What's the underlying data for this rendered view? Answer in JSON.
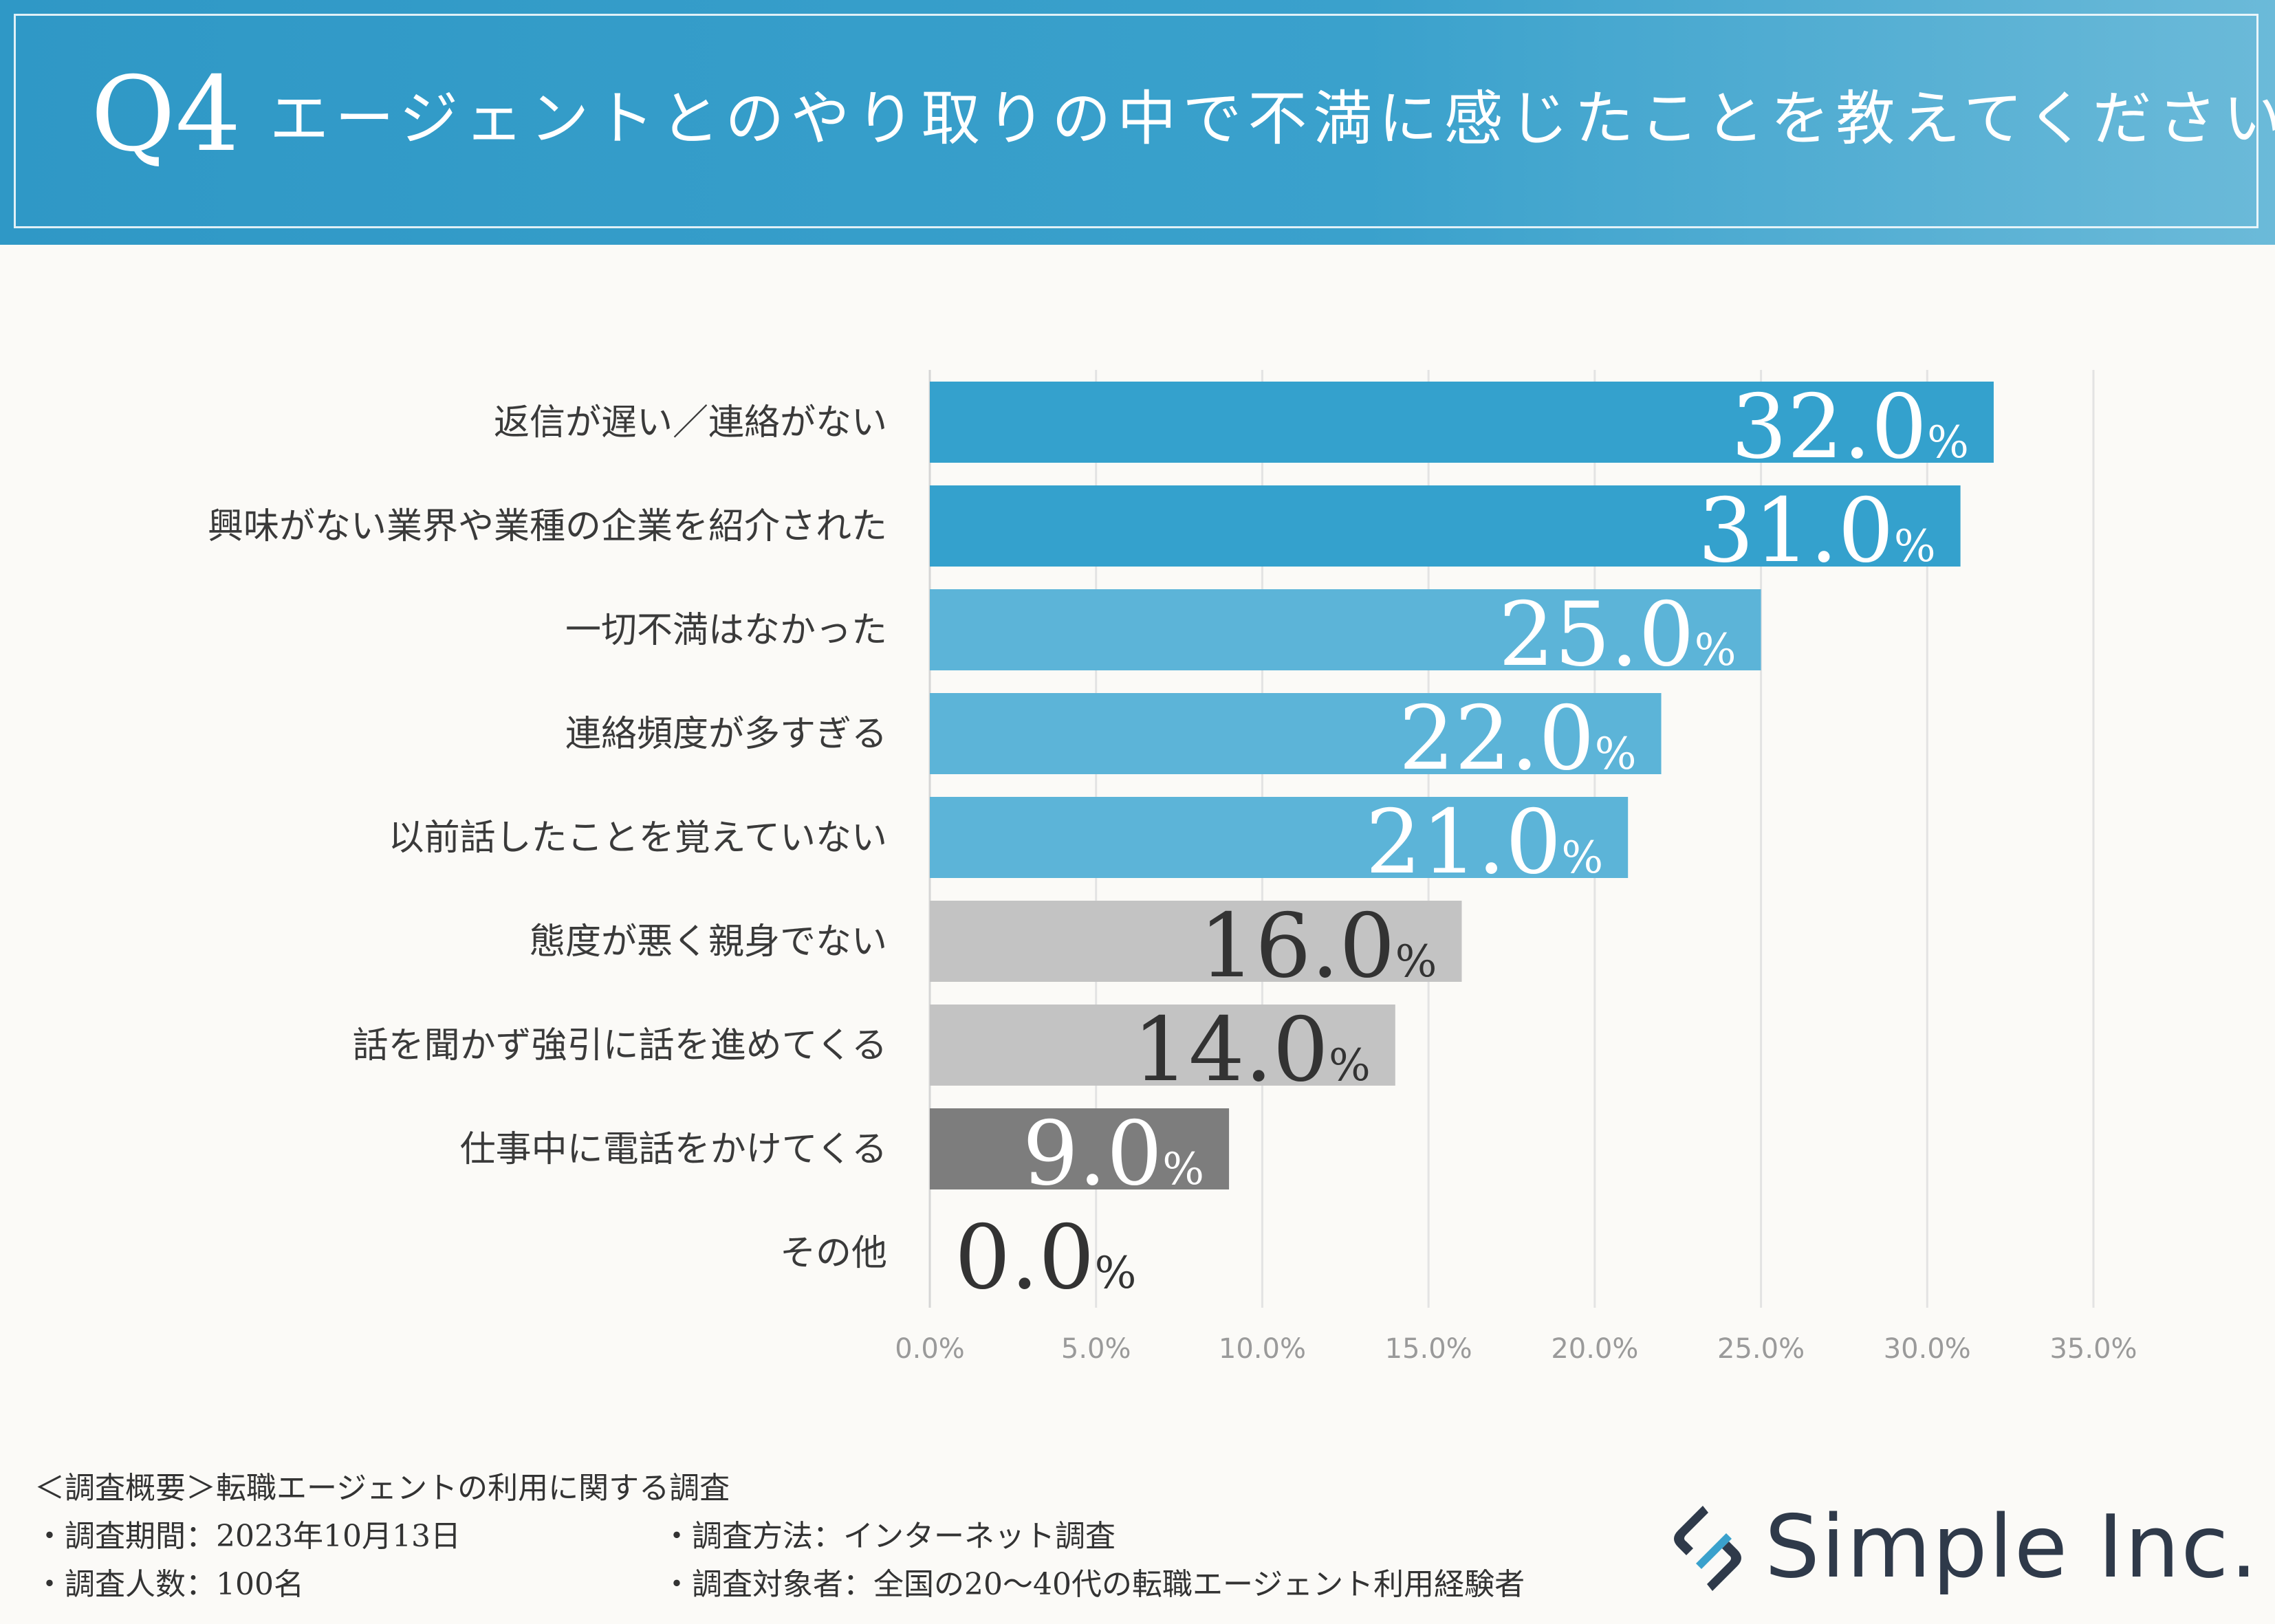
{
  "header": {
    "q_number": "Q4",
    "title": "エージェントとのやり取りの中で不満に感じたことを教えてください"
  },
  "chart_data": {
    "type": "bar",
    "orientation": "horizontal",
    "categories": [
      "返信が遅い／連絡がない",
      "興味がない業界や業種の企業を紹介された",
      "一切不満はなかった",
      "連絡頻度が多すぎる",
      "以前話したことを覚えていない",
      "態度が悪く親身でない",
      "話を聞かず強引に話を進めてくる",
      "仕事中に電話をかけてくる",
      "その他"
    ],
    "values": [
      32.0,
      31.0,
      25.0,
      22.0,
      21.0,
      16.0,
      14.0,
      9.0,
      0.0
    ],
    "value_labels": [
      "32.0",
      "31.0",
      "25.0",
      "22.0",
      "21.0",
      "16.0",
      "14.0",
      "9.0",
      "0.0"
    ],
    "value_unit": "%",
    "bar_colors": [
      "#34a1cd",
      "#34a1cd",
      "#5cb4d8",
      "#5cb4d8",
      "#5cb4d8",
      "#c3c3c3",
      "#c3c3c3",
      "#7d7d7d",
      "#c3c3c3"
    ],
    "label_colors": [
      "#ffffff",
      "#ffffff",
      "#ffffff",
      "#ffffff",
      "#ffffff",
      "#333333",
      "#333333",
      "#ffffff",
      "#333333"
    ],
    "xlim": [
      0,
      35
    ],
    "xticks": [
      "0.0%",
      "5.0%",
      "10.0%",
      "15.0%",
      "20.0%",
      "25.0%",
      "30.0%",
      "35.0%"
    ],
    "grid": true
  },
  "footer": {
    "line1": "＜調査概要＞転職エージェントの利用に関する調査",
    "period": "・調査期間：2023年10月13日",
    "method": "・調査方法：インターネット調査",
    "count": "・調査人数：100名",
    "target": "・調査対象者：全国の20〜40代の転職エージェント利用経験者"
  },
  "logo": {
    "text": "Simple Inc.",
    "colors": {
      "dark": "#2f3a4a",
      "accent": "#3aa1cc"
    }
  }
}
